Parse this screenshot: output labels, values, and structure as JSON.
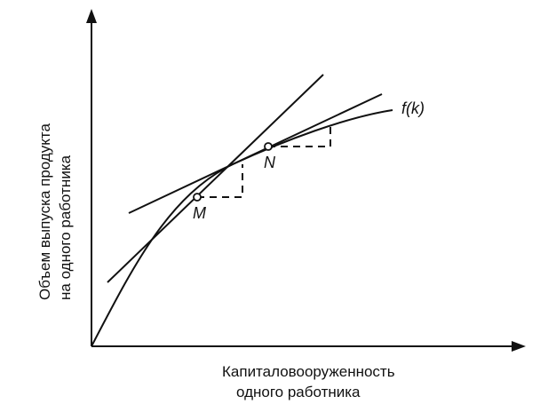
{
  "diagram": {
    "y_axis_label_line1": "Объем выпуска продукта",
    "y_axis_label_line2": "на одного работника",
    "x_axis_label_line1": "Капиталовооруженность",
    "x_axis_label_line2": "одного работника",
    "curve_label": "f(k)",
    "point_m_label": "M",
    "point_n_label": "N"
  }
}
